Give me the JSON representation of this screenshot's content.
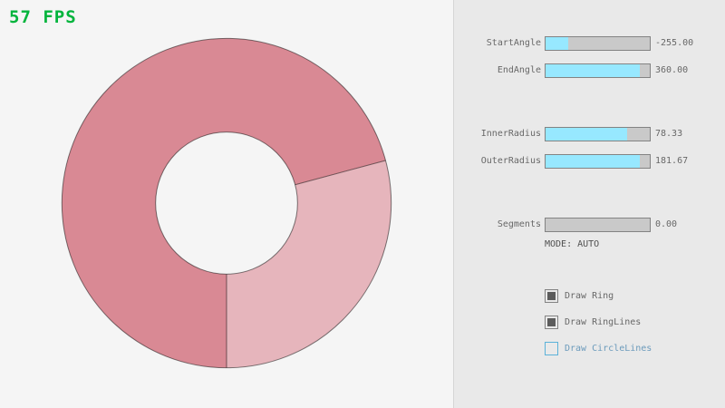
{
  "fps": {
    "text": "57 FPS",
    "color": "#00b43c"
  },
  "ring": {
    "color_dark": "#d98994",
    "color_light": "#e6b5bc",
    "line_color": "rgba(0,0,0,0.5)"
  },
  "panel": {
    "sliders": [
      {
        "label": "StartAngle",
        "value": "-255.00",
        "fill_pct": 21.7
      },
      {
        "label": "EndAngle",
        "value": "360.00",
        "fill_pct": 90
      },
      {
        "label": "InnerRadius",
        "value": "78.33",
        "fill_pct": 78.3
      },
      {
        "label": "OuterRadius",
        "value": "181.67",
        "fill_pct": 90.8
      },
      {
        "label": "Segments",
        "value": "0.00",
        "fill_pct": 0
      }
    ],
    "mode_text": "MODE: AUTO",
    "checkboxes": [
      {
        "label": "Draw Ring",
        "checked": true,
        "focused": false
      },
      {
        "label": "Draw RingLines",
        "checked": true,
        "focused": false
      },
      {
        "label": "Draw CircleLines",
        "checked": false,
        "focused": true
      }
    ]
  }
}
